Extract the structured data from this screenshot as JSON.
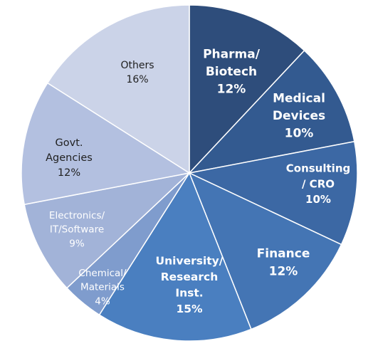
{
  "chart_data": {
    "type": "pie",
    "title": "",
    "start_angle_deg": 0,
    "direction": "clockwise",
    "slices": [
      {
        "label_lines": [
          "Pharma/",
          "Biotech"
        ],
        "value_text": "12%",
        "value": 12,
        "color": "#2e4d7b",
        "text_color": "#ffffff",
        "bold": true
      },
      {
        "label_lines": [
          "Medical",
          "Devices"
        ],
        "value_text": "10%",
        "value": 10,
        "color": "#335a90",
        "text_color": "#ffffff",
        "bold": true
      },
      {
        "label_lines": [
          "Consulting",
          "/ CRO"
        ],
        "value_text": "10%",
        "value": 10,
        "color": "#3c68a4",
        "text_color": "#ffffff",
        "bold": true
      },
      {
        "label_lines": [
          "Finance"
        ],
        "value_text": "12%",
        "value": 12,
        "color": "#4475b4",
        "text_color": "#ffffff",
        "bold": true
      },
      {
        "label_lines": [
          "University/",
          "Research",
          "Inst."
        ],
        "value_text": "15%",
        "value": 15,
        "color": "#4a7fc0",
        "text_color": "#ffffff",
        "bold": true
      },
      {
        "label_lines": [
          "Chemical/",
          "Materials"
        ],
        "value_text": "4%",
        "value": 4,
        "color": "#7f9ccd",
        "text_color": "#ffffff",
        "bold": false
      },
      {
        "label_lines": [
          "Electronics/",
          "IT/Software"
        ],
        "value_text": "9%",
        "value": 9,
        "color": "#a2b3d8",
        "text_color": "#ffffff",
        "bold": false
      },
      {
        "label_lines": [
          "Govt.",
          "Agencies"
        ],
        "value_text": "12%",
        "value": 12,
        "color": "#b3c0e0",
        "text_color": "#1f1f1f",
        "bold": false
      },
      {
        "label_lines": [
          "Others"
        ],
        "value_text": "16%",
        "value": 16,
        "color": "#cbd3e8",
        "text_color": "#1f1f1f",
        "bold": false
      }
    ]
  }
}
